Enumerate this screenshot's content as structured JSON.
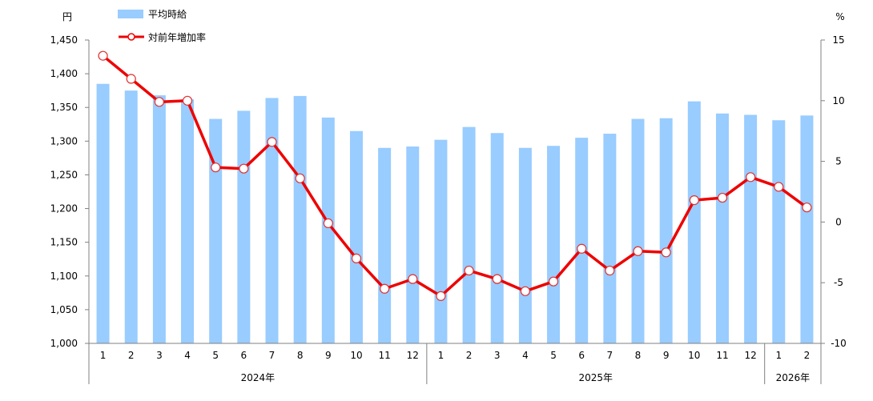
{
  "chart_data": {
    "type": "bar+line",
    "title": "",
    "left_axis": {
      "unit": "円",
      "min": 1000,
      "max": 1450,
      "step": 50
    },
    "right_axis": {
      "unit": "%",
      "min": -10,
      "max": 15,
      "step": 5
    },
    "month_labels": [
      "1",
      "2",
      "3",
      "4",
      "5",
      "6",
      "7",
      "8",
      "9",
      "10",
      "11",
      "12",
      "1",
      "2",
      "3",
      "4",
      "5",
      "6",
      "7",
      "8",
      "9",
      "10",
      "11",
      "12",
      "1",
      "2"
    ],
    "year_groups": [
      {
        "label": "2024年",
        "count": 12
      },
      {
        "label": "2025年",
        "count": 12
      },
      {
        "label": "2026年",
        "count": 2
      }
    ],
    "series": [
      {
        "name": "平均時給",
        "type": "bar",
        "axis": "left",
        "color": "#99ccff",
        "values": [
          1385,
          1375,
          1368,
          1362,
          1333,
          1345,
          1364,
          1367,
          1335,
          1315,
          1290,
          1292,
          1302,
          1321,
          1312,
          1290,
          1293,
          1305,
          1311,
          1333,
          1334,
          1359,
          1341,
          1339,
          1331,
          1338
        ]
      },
      {
        "name": "対前年増加率",
        "type": "line",
        "axis": "right",
        "color": "#ee0000",
        "values": [
          13.7,
          11.8,
          9.9,
          10.0,
          4.5,
          4.4,
          6.6,
          3.6,
          -0.1,
          -3.0,
          -5.5,
          -4.7,
          -6.1,
          -4.0,
          -4.7,
          -5.7,
          -4.9,
          -2.2,
          -4.0,
          -2.4,
          -2.5,
          1.8,
          2.0,
          3.7,
          2.9,
          1.2
        ]
      }
    ]
  }
}
